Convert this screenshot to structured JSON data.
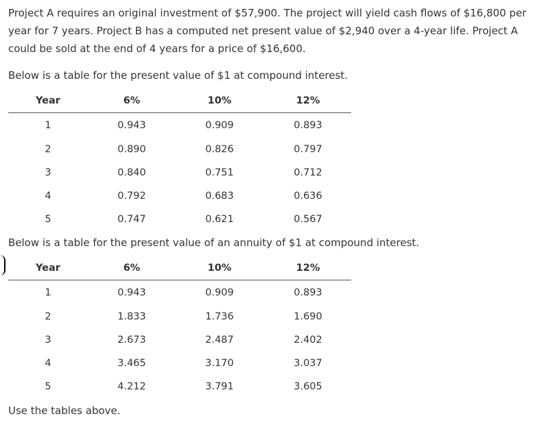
{
  "intro": "Project A requires an original investment of $57,900. The project will yield cash flows of $16,800 per year for 7 years. Project B has a computed net present value of $2,940 over a 4-year life. Project A could be sold at the end of 4 years for a price of $16,600.",
  "table1": {
    "caption": "Below is a table for the present value of $1 at compound interest.",
    "headers": [
      "Year",
      "6%",
      "10%",
      "12%"
    ],
    "rows": [
      [
        "1",
        "0.943",
        "0.909",
        "0.893"
      ],
      [
        "2",
        "0.890",
        "0.826",
        "0.797"
      ],
      [
        "3",
        "0.840",
        "0.751",
        "0.712"
      ],
      [
        "4",
        "0.792",
        "0.683",
        "0.636"
      ],
      [
        "5",
        "0.747",
        "0.621",
        "0.567"
      ]
    ]
  },
  "table2": {
    "caption": "Below is a table for the present value of an annuity of $1 at compound interest.",
    "headers": [
      "Year",
      "6%",
      "10%",
      "12%"
    ],
    "rows": [
      [
        "1",
        "0.943",
        "0.909",
        "0.893"
      ],
      [
        "2",
        "1.833",
        "1.736",
        "1.690"
      ],
      [
        "3",
        "2.673",
        "2.487",
        "2.402"
      ],
      [
        "4",
        "3.465",
        "3.170",
        "3.037"
      ],
      [
        "5",
        "4.212",
        "3.791",
        "3.605"
      ]
    ]
  },
  "footer": "Use the tables above."
}
